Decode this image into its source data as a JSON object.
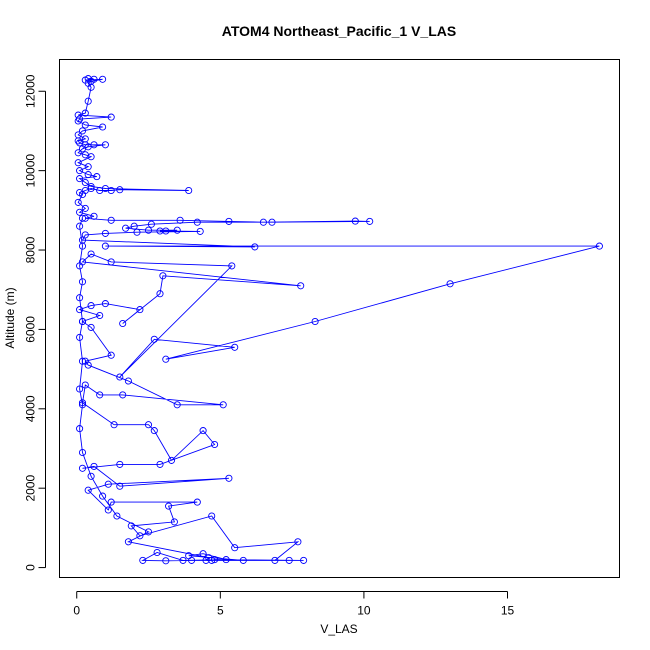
{
  "chart_data": {
    "type": "line",
    "title": "ATOM4 Northeast_Pacific_1 V_LAS",
    "xlabel": "V_LAS",
    "ylabel": "Altitude (m)",
    "xlim": [
      -0.6,
      18.9
    ],
    "ylim": [
      -250,
      12800
    ],
    "x_ticks": [
      0,
      5,
      10,
      15
    ],
    "x_tick_labels": [
      "0",
      "5",
      "10",
      "15"
    ],
    "y_ticks": [
      0,
      2000,
      4000,
      6000,
      8000,
      10000,
      12000
    ],
    "y_tick_labels": [
      "0",
      "2000",
      "4000",
      "6000",
      "8000",
      "10000",
      "12000"
    ],
    "grid": false,
    "series": [
      {
        "color": "#0000ff",
        "points": [
          [
            0.4,
            12320
          ],
          [
            0.6,
            12300
          ],
          [
            0.3,
            12280
          ],
          [
            0.9,
            12300
          ],
          [
            0.5,
            12250
          ],
          [
            0.4,
            12200
          ],
          [
            0.5,
            12100
          ],
          [
            0.4,
            11750
          ],
          [
            0.3,
            11450
          ],
          [
            0.05,
            11400
          ],
          [
            1.2,
            11350
          ],
          [
            0.1,
            11300
          ],
          [
            0.05,
            11250
          ],
          [
            0.3,
            11150
          ],
          [
            0.9,
            11100
          ],
          [
            0.2,
            11000
          ],
          [
            0.05,
            10900
          ],
          [
            0.3,
            10800
          ],
          [
            0.05,
            10750
          ],
          [
            0.1,
            10700
          ],
          [
            0.3,
            10650
          ],
          [
            0.6,
            10650
          ],
          [
            1.0,
            10650
          ],
          [
            0.4,
            10600
          ],
          [
            0.2,
            10550
          ],
          [
            0.05,
            10450
          ],
          [
            0.3,
            10400
          ],
          [
            0.5,
            10350
          ],
          [
            0.05,
            10200
          ],
          [
            0.4,
            10100
          ],
          [
            0.1,
            10000
          ],
          [
            0.4,
            9900
          ],
          [
            0.7,
            9850
          ],
          [
            0.1,
            9800
          ],
          [
            0.3,
            9700
          ],
          [
            0.5,
            9600
          ],
          [
            1.0,
            9550
          ],
          [
            3.9,
            9500
          ],
          [
            1.5,
            9520
          ],
          [
            1.2,
            9500
          ],
          [
            0.8,
            9500
          ],
          [
            0.5,
            9550
          ],
          [
            0.3,
            9500
          ],
          [
            0.1,
            9450
          ],
          [
            0.2,
            9400
          ],
          [
            0.05,
            9200
          ],
          [
            0.3,
            9050
          ],
          [
            0.1,
            8950
          ],
          [
            0.6,
            8850
          ],
          [
            0.3,
            8800
          ],
          [
            1.2,
            8750
          ],
          [
            3.6,
            8750
          ],
          [
            5.3,
            8720
          ],
          [
            6.5,
            8700
          ],
          [
            9.7,
            8730
          ],
          [
            10.2,
            8720
          ],
          [
            6.8,
            8700
          ],
          [
            4.2,
            8700
          ],
          [
            2.6,
            8650
          ],
          [
            2.0,
            8600
          ],
          [
            1.7,
            8550
          ],
          [
            2.5,
            8500
          ],
          [
            3.5,
            8500
          ],
          [
            3.1,
            8480
          ],
          [
            2.9,
            8480
          ],
          [
            4.3,
            8470
          ],
          [
            2.1,
            8450
          ],
          [
            1.0,
            8420
          ],
          [
            0.3,
            8380
          ],
          [
            0.2,
            8250
          ],
          [
            6.2,
            8080
          ],
          [
            1.0,
            8100
          ],
          [
            18.2,
            8100
          ],
          [
            13.0,
            7150
          ],
          [
            8.3,
            6200
          ],
          [
            3.1,
            5250
          ],
          [
            5.5,
            5550
          ],
          [
            2.7,
            5750
          ],
          [
            1.5,
            4800
          ],
          [
            5.4,
            7600
          ],
          [
            1.2,
            7700
          ],
          [
            0.5,
            7900
          ],
          [
            0.2,
            7700
          ],
          [
            7.8,
            7100
          ],
          [
            3.0,
            7350
          ],
          [
            2.9,
            6900
          ],
          [
            1.6,
            6150
          ],
          [
            2.2,
            6500
          ],
          [
            1.0,
            6650
          ],
          [
            0.5,
            6600
          ],
          [
            0.1,
            6500
          ],
          [
            0.8,
            6350
          ],
          [
            0.2,
            6200
          ],
          [
            0.5,
            6050
          ],
          [
            1.2,
            5350
          ],
          [
            0.3,
            5200
          ],
          [
            0.4,
            5100
          ],
          [
            1.8,
            4700
          ],
          [
            3.5,
            4100
          ],
          [
            5.1,
            4100
          ],
          [
            1.6,
            4350
          ],
          [
            0.8,
            4350
          ],
          [
            0.3,
            4600
          ],
          [
            0.2,
            4150
          ],
          [
            1.3,
            3600
          ],
          [
            2.5,
            3600
          ],
          [
            2.7,
            3450
          ],
          [
            3.3,
            2700
          ],
          [
            4.4,
            3450
          ],
          [
            4.8,
            3100
          ],
          [
            2.9,
            2600
          ],
          [
            1.5,
            2600
          ],
          [
            0.2,
            2500
          ],
          [
            0.6,
            2550
          ],
          [
            1.5,
            2050
          ],
          [
            5.3,
            2250
          ],
          [
            1.1,
            2100
          ],
          [
            0.4,
            1950
          ],
          [
            1.1,
            1450
          ],
          [
            1.2,
            1650
          ],
          [
            4.2,
            1650
          ],
          [
            3.2,
            1550
          ],
          [
            3.4,
            1150
          ],
          [
            1.9,
            1050
          ],
          [
            2.2,
            800
          ],
          [
            4.7,
            1300
          ],
          [
            5.5,
            500
          ],
          [
            7.7,
            650
          ],
          [
            6.9,
            180
          ],
          [
            4.0,
            180
          ],
          [
            3.1,
            170
          ],
          [
            2.3,
            180
          ],
          [
            2.8,
            380
          ],
          [
            3.7,
            180
          ],
          [
            5.2,
            200
          ],
          [
            4.4,
            350
          ],
          [
            3.9,
            300
          ],
          [
            5.8,
            180
          ],
          [
            7.4,
            180
          ],
          [
            7.9,
            180
          ],
          [
            4.8,
            200
          ],
          [
            4.7,
            180
          ],
          [
            4.5,
            180
          ],
          [
            4.6,
            250
          ],
          [
            1.8,
            650
          ],
          [
            2.5,
            900
          ],
          [
            1.4,
            1300
          ],
          [
            0.9,
            1800
          ],
          [
            0.5,
            2300
          ],
          [
            0.2,
            2900
          ],
          [
            0.1,
            3500
          ],
          [
            0.2,
            4100
          ],
          [
            0.1,
            4500
          ],
          [
            0.2,
            5200
          ],
          [
            0.1,
            5800
          ],
          [
            0.2,
            6200
          ],
          [
            0.1,
            6800
          ],
          [
            0.2,
            7200
          ],
          [
            0.1,
            7600
          ],
          [
            0.2,
            8100
          ],
          [
            0.1,
            8600
          ],
          [
            0.2,
            8800
          ]
        ]
      }
    ]
  }
}
